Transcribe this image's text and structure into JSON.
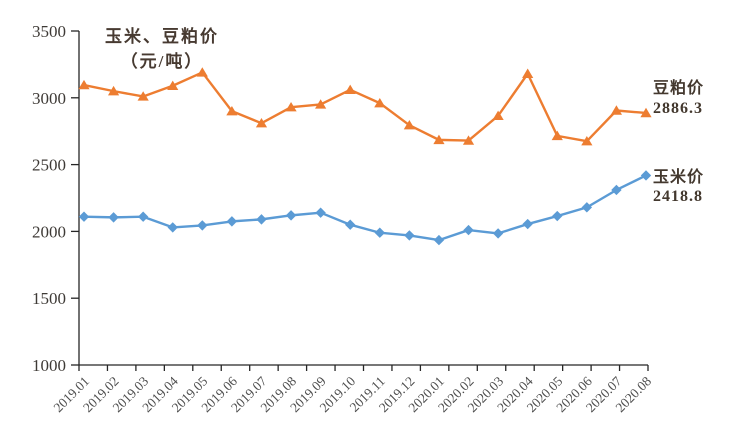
{
  "title": {
    "line1": "玉米、豆粕价",
    "line2": "（元/吨）"
  },
  "end_labels": {
    "soybean_meal_name": "豆粕价",
    "soybean_meal_value": "2886.3",
    "corn_name": "玉米价",
    "corn_value": "2418.8"
  },
  "colors": {
    "soybean_meal_line": "#ED7D31",
    "corn_line": "#5B9BD5",
    "axis_line": "#262626",
    "y_tick_label": "#3e3a36",
    "x_tick_label": "#4d4d4d",
    "title_text": "#473a31"
  },
  "chart_data": {
    "type": "line",
    "title": "玉米、豆粕价（元/吨）",
    "xlabel": "",
    "ylabel": "元/吨",
    "x": [
      "2019.01",
      "2019.02",
      "2019.03",
      "2019.04",
      "2019.05",
      "2019.06",
      "2019.07",
      "2019.08",
      "2019.09",
      "2019.10",
      "2019.11",
      "2019.12",
      "2020.01",
      "2020.02",
      "2020.03",
      "2020.04",
      "2020.05",
      "2020.06",
      "2020.07",
      "2020.08"
    ],
    "series": [
      {
        "name": "豆粕价",
        "marker": "triangle",
        "color": "#ED7D31",
        "values": [
          3095,
          3050,
          3010,
          3090,
          3190,
          2900,
          2810,
          2930,
          2950,
          3060,
          2960,
          2795,
          2685,
          2680,
          2865,
          3180,
          2715,
          2675,
          2905,
          2886.3
        ],
        "last_value_label": "2886.3"
      },
      {
        "name": "玉米价",
        "marker": "diamond",
        "color": "#5B9BD5",
        "values": [
          2110,
          2105,
          2110,
          2030,
          2045,
          2075,
          2090,
          2120,
          2140,
          2050,
          1990,
          1970,
          1935,
          2010,
          1985,
          2055,
          2115,
          2180,
          2310,
          2418.8
        ],
        "last_value_label": "2418.8"
      }
    ],
    "ylim": [
      1000,
      3500
    ],
    "yticks": [
      3500,
      3000,
      2500,
      2000,
      1500,
      1000
    ],
    "grid": false,
    "legend_position": "right-of-line-ends"
  }
}
